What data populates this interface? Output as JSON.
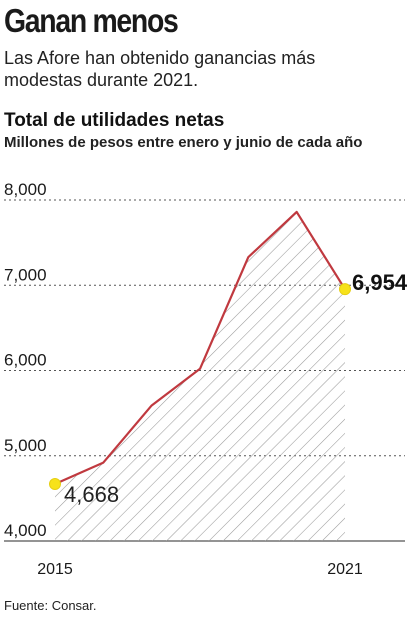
{
  "headline": "Ganan menos",
  "subheadline": "Las Afore han obtenido ganancias más modestas durante 2021.",
  "source": "Fuente: Consar.",
  "colors": {
    "line": "#c0393f",
    "highlight_point": "#f7e21a",
    "hatch": "#9a9a9a",
    "grid": "#555555",
    "text": "#1a1a1a"
  },
  "chart_data": {
    "type": "area",
    "title": "Total de utilidades netas",
    "subtitle": "Millones de pesos entre enero y junio de cada año",
    "x": [
      2015,
      2016,
      2017,
      2018,
      2019,
      2020,
      2021
    ],
    "x_tick_labels": [
      "2015",
      "",
      "",
      "",
      "",
      "",
      "2021"
    ],
    "y": [
      4668,
      4920,
      5590,
      6020,
      7330,
      7860,
      6954
    ],
    "ylim": [
      4000,
      8000
    ],
    "y_ticks": [
      8000,
      7000,
      6000,
      5000,
      4000
    ],
    "y_tick_labels": [
      "8,000",
      "7,000",
      "6,000",
      "5,000",
      "4,000"
    ],
    "grid": "horizontal-dashed",
    "fill": "diagonal-hatch",
    "annotations": [
      {
        "x": 2015,
        "y": 4668,
        "label": "4,668"
      },
      {
        "x": 2021,
        "y": 6954,
        "label": "6,954"
      }
    ]
  }
}
